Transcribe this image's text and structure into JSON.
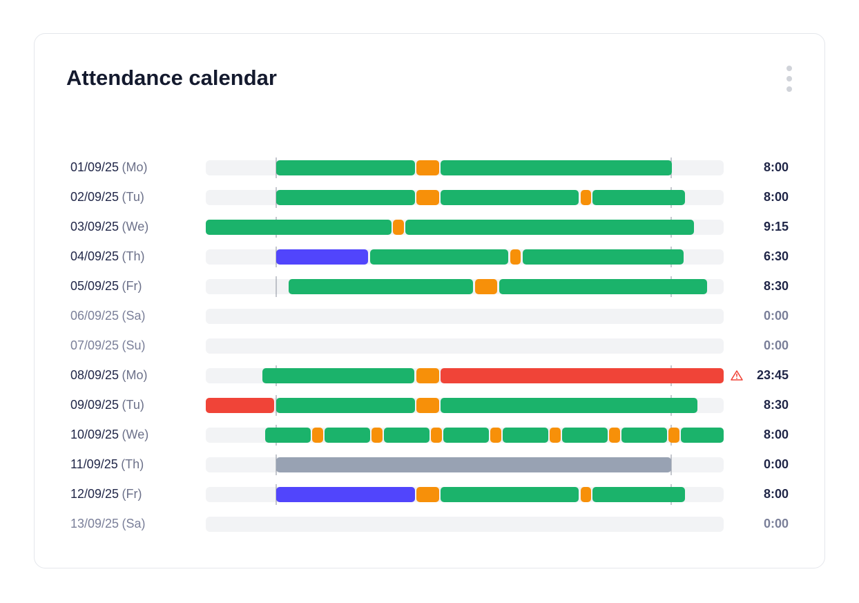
{
  "header": {
    "title": "Attendance calendar"
  },
  "rows": [
    {
      "date": "01/09/25",
      "day": "(Mo)",
      "total": "8:00",
      "muted": false
    },
    {
      "date": "02/09/25",
      "day": "(Tu)",
      "total": "8:00",
      "muted": false
    },
    {
      "date": "03/09/25",
      "day": "(We)",
      "total": "9:15",
      "muted": false
    },
    {
      "date": "04/09/25",
      "day": "(Th)",
      "total": "6:30",
      "muted": false
    },
    {
      "date": "05/09/25",
      "day": "(Fr)",
      "total": "8:30",
      "muted": false
    },
    {
      "date": "06/09/25",
      "day": "(Sa)",
      "total": "0:00",
      "muted": true
    },
    {
      "date": "07/09/25",
      "day": "(Su)",
      "total": "0:00",
      "muted": true
    },
    {
      "date": "08/09/25",
      "day": "(Mo)",
      "total": "23:45",
      "muted": false,
      "warning": true
    },
    {
      "date": "09/09/25",
      "day": "(Tu)",
      "total": "8:30",
      "muted": false
    },
    {
      "date": "10/09/25",
      "day": "(We)",
      "total": "8:00",
      "muted": false
    },
    {
      "date": "11/09/25",
      "day": "(Th)",
      "total": "0:00",
      "muted": false
    },
    {
      "date": "12/09/25",
      "day": "(Fr)",
      "total": "8:00",
      "muted": false
    },
    {
      "date": "13/09/25",
      "day": "(Sa)",
      "total": "0:00",
      "muted": true
    }
  ]
}
